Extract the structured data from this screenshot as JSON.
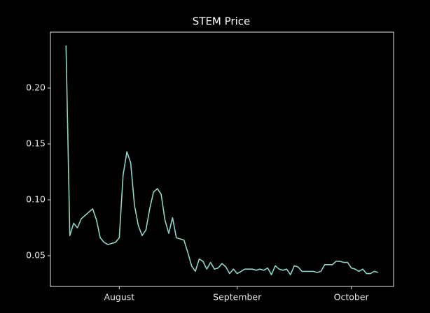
{
  "chart_data": {
    "type": "line",
    "title": "STEM Price",
    "categories": [
      null,
      null,
      null,
      null,
      null,
      null,
      null,
      null,
      null,
      null,
      null,
      null,
      null,
      null,
      "August",
      null,
      null,
      null,
      null,
      null,
      null,
      null,
      null,
      null,
      null,
      null,
      null,
      null,
      null,
      null,
      null,
      null,
      null,
      null,
      null,
      null,
      null,
      null,
      null,
      null,
      null,
      null,
      null,
      null,
      null,
      "September",
      null,
      null,
      null,
      null,
      null,
      null,
      null,
      null,
      null,
      null,
      null,
      null,
      null,
      null,
      null,
      null,
      null,
      null,
      null,
      null,
      null,
      null,
      null,
      null,
      null,
      null,
      null,
      null,
      null,
      "October",
      null,
      null,
      null,
      null,
      null,
      null,
      null
    ],
    "values": [
      0.238,
      0.068,
      0.079,
      0.075,
      0.083,
      0.086,
      0.089,
      0.092,
      0.082,
      0.066,
      0.062,
      0.06,
      0.061,
      0.062,
      0.066,
      0.122,
      0.143,
      0.133,
      0.095,
      0.077,
      0.068,
      0.073,
      0.092,
      0.107,
      0.11,
      0.105,
      0.082,
      0.07,
      0.084,
      0.066,
      0.065,
      0.064,
      0.053,
      0.041,
      0.036,
      0.047,
      0.045,
      0.038,
      0.044,
      0.038,
      0.039,
      0.043,
      0.04,
      0.034,
      0.038,
      0.034,
      0.036,
      0.038,
      0.038,
      0.038,
      0.037,
      0.038,
      0.037,
      0.039,
      0.033,
      0.041,
      0.038,
      0.037,
      0.038,
      0.033,
      0.041,
      0.04,
      0.036,
      0.036,
      0.036,
      0.036,
      0.035,
      0.036,
      0.042,
      0.042,
      0.042,
      0.045,
      0.045,
      0.044,
      0.044,
      0.039,
      0.038,
      0.036,
      0.038,
      0.034,
      0.034,
      0.036,
      0.035
    ],
    "color": "#8dd3c7",
    "xlim": [
      -4.1,
      86.1
    ],
    "ylim": [
      0.0225,
      0.25
    ],
    "yticks": [
      0.05,
      {
        "value": 0.1,
        "label": "0.10"
      },
      0.15,
      {
        "value": 0.2,
        "label": "0.20"
      }
    ],
    "grid": false
  }
}
